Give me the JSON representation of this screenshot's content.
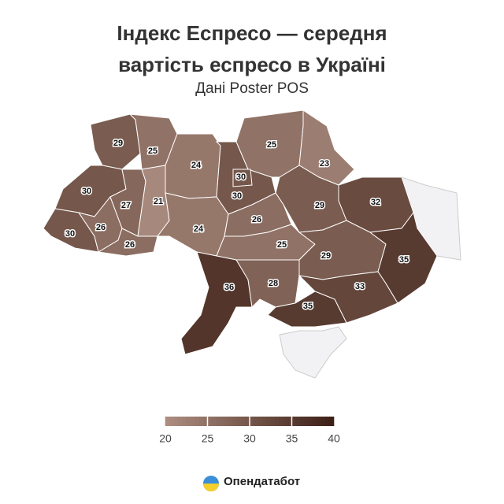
{
  "chart_data": {
    "type": "choropleth",
    "title": "Індекс Еспресо — середня вартість еспресо в Україні",
    "subtitle": "Дані Poster POS",
    "values": [
      29,
      25,
      24,
      30,
      30,
      25,
      23,
      32,
      29,
      30,
      30,
      26,
      27,
      26,
      21,
      24,
      26,
      25,
      29,
      35,
      36,
      28,
      33,
      35
    ],
    "colorlim": [
      20,
      40
    ],
    "colorticks": [
      20,
      25,
      30,
      35,
      40
    ],
    "colors": [
      "#ad8e81",
      "#3c1f15"
    ],
    "no_data_color": "#f2f2f4",
    "source": "Опендатабот"
  }
}
